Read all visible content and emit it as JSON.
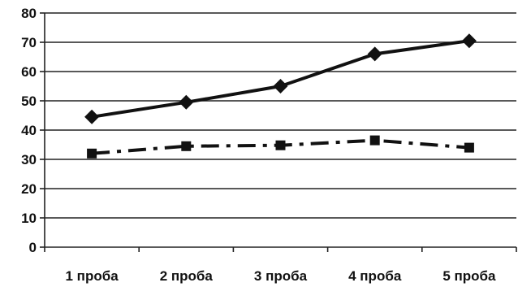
{
  "chart_data": {
    "type": "line",
    "title": "",
    "xlabel": "",
    "ylabel": "",
    "categories": [
      "1 проба",
      "2 проба",
      "3 проба",
      "4 проба",
      "5 проба"
    ],
    "ylim": [
      0,
      80
    ],
    "yticks": [
      0,
      10,
      20,
      30,
      40,
      50,
      60,
      70,
      80
    ],
    "grid": true,
    "legend": "none",
    "series": [
      {
        "values": [
          44.5,
          49.5,
          55,
          66,
          70.5
        ],
        "style": "solid",
        "marker": "diamond",
        "color": "#111111"
      },
      {
        "values": [
          32,
          34.5,
          34.8,
          36.5,
          34
        ],
        "style": "dashdot",
        "marker": "square",
        "color": "#111111"
      }
    ]
  }
}
